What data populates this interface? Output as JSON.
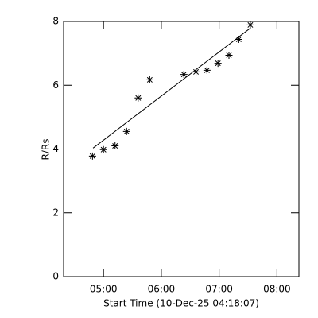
{
  "chart_data": {
    "type": "scatter",
    "xlabel": "Start Time (10-Dec-25 04:18:07)",
    "ylabel": "R/Rs",
    "series": [
      {
        "kind": "points",
        "color": "#000000",
        "x": [
          4.81,
          5.0,
          5.2,
          5.4,
          5.6,
          5.8,
          6.39,
          6.6,
          6.79,
          6.98,
          7.17,
          7.34,
          7.54
        ],
        "values": [
          3.78,
          3.98,
          4.1,
          4.55,
          5.6,
          6.17,
          6.34,
          6.42,
          6.47,
          6.69,
          6.94,
          7.44,
          7.89
        ]
      },
      {
        "kind": "line",
        "color": "#000000",
        "x": [
          4.82,
          7.54
        ],
        "values": [
          4.03,
          7.79
        ]
      }
    ],
    "xlim": [
      4.31,
      8.38
    ],
    "ylim": [
      0,
      8
    ],
    "xticks": [
      {
        "value": 5,
        "label": "05:00"
      },
      {
        "value": 6,
        "label": "06:00"
      },
      {
        "value": 7,
        "label": "07:00"
      },
      {
        "value": 8,
        "label": "08:00"
      }
    ],
    "yticks": [
      0,
      2,
      4,
      6,
      8
    ]
  }
}
